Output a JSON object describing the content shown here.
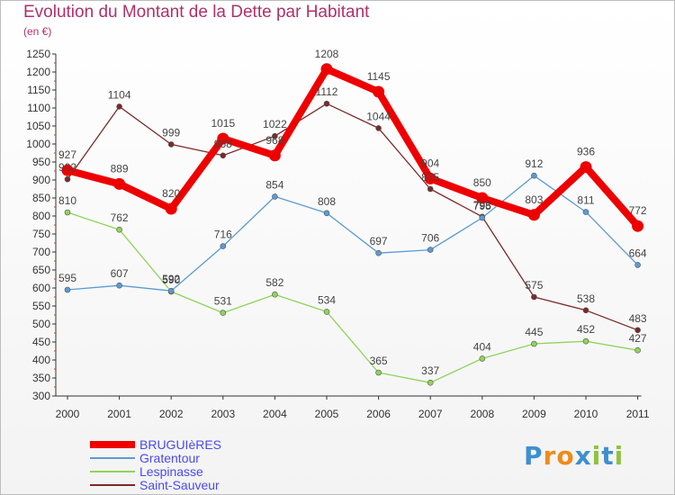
{
  "header": {
    "title": "Evolution du Montant de la Dette par Habitant",
    "subtitle": "(en €)"
  },
  "logo": {
    "text": "Proxiti",
    "letters": [
      {
        "ch": "P",
        "color": "#3e8fd0"
      },
      {
        "ch": "r",
        "color": "#f08a1a"
      },
      {
        "ch": "o",
        "color": "#f08a1a"
      },
      {
        "ch": "x",
        "color": "#3e8fd0"
      },
      {
        "ch": "i",
        "color": "#8fc23e"
      },
      {
        "ch": "t",
        "color": "#3e8fd0"
      },
      {
        "ch": "i",
        "color": "#8fc23e"
      }
    ]
  },
  "chart_data": {
    "type": "line",
    "x": [
      "2000",
      "2001",
      "2002",
      "2003",
      "2004",
      "2005",
      "2006",
      "2007",
      "2008",
      "2009",
      "2010",
      "2011"
    ],
    "ylim": [
      300,
      1250
    ],
    "yticks": [
      300,
      350,
      400,
      450,
      500,
      550,
      600,
      650,
      700,
      750,
      800,
      850,
      900,
      950,
      1000,
      1050,
      1100,
      1150,
      1200,
      1250
    ],
    "grid": false,
    "legend_position": "bottom-left",
    "series": [
      {
        "name": "BRUGUIèRES",
        "color": "#ee0000",
        "values": [
          927,
          889,
          820,
          1015,
          968,
          1208,
          1145,
          904,
          850,
          803,
          936,
          772
        ]
      },
      {
        "name": "Gratentour",
        "color": "#5b9bd5",
        "values": [
          595,
          607,
          592,
          716,
          854,
          808,
          697,
          706,
          795,
          912,
          811,
          664
        ]
      },
      {
        "name": "Lespinasse",
        "color": "#8ed45a",
        "values": [
          810,
          762,
          590,
          531,
          582,
          534,
          365,
          337,
          404,
          445,
          452,
          427
        ]
      },
      {
        "name": "Saint-Sauveur",
        "color": "#7a2a2a",
        "values": [
          902,
          1104,
          999,
          968,
          1022,
          1112,
          1044,
          875,
          798,
          575,
          538,
          483
        ]
      }
    ]
  }
}
